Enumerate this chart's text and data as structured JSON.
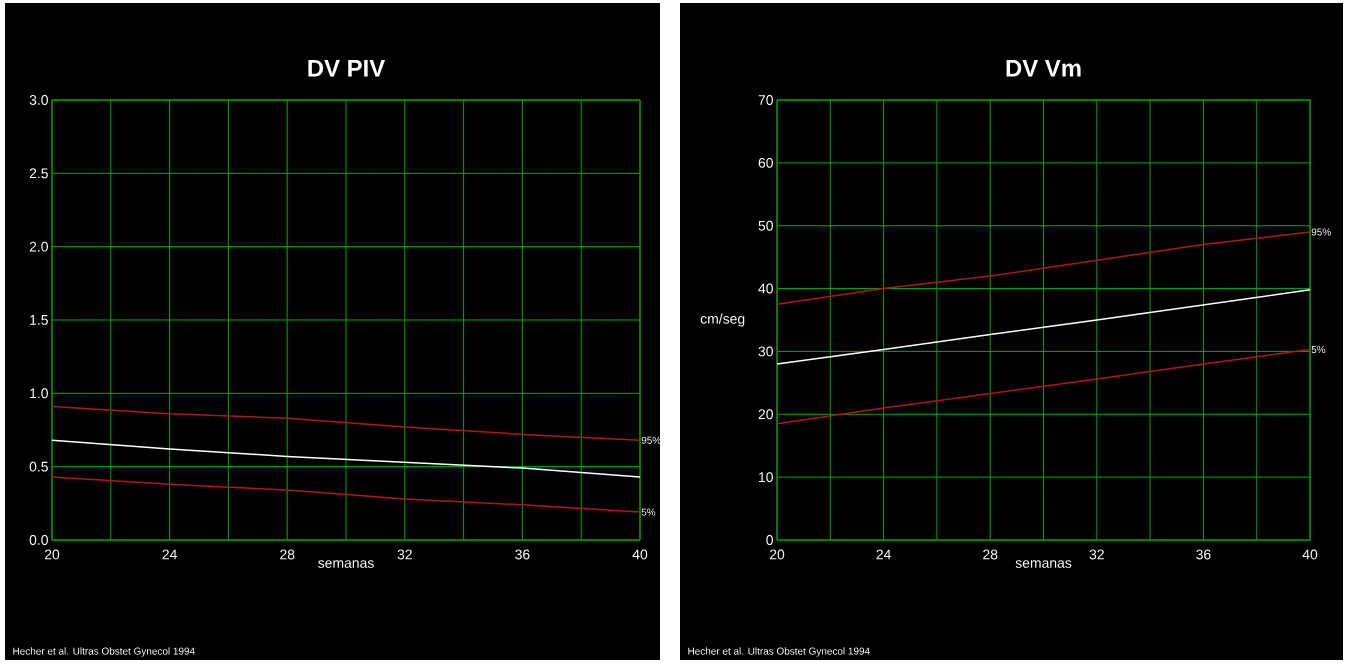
{
  "chart_data": [
    {
      "type": "line",
      "title": "DV PIV",
      "xlabel": "semanas",
      "x": [
        20,
        24,
        28,
        32,
        36,
        40
      ],
      "series": [
        {
          "name": "95%",
          "color": "#b01818",
          "values": [
            0.91,
            0.86,
            0.83,
            0.77,
            0.72,
            0.68
          ]
        },
        {
          "color": "#ffffff",
          "values": [
            0.68,
            0.62,
            0.57,
            0.53,
            0.49,
            0.43
          ]
        },
        {
          "name": "5%",
          "color": "#b01818",
          "values": [
            0.43,
            0.38,
            0.34,
            0.28,
            0.24,
            0.19
          ]
        }
      ],
      "xlim": [
        20,
        40
      ],
      "ylim": [
        0,
        3
      ],
      "xticks": [
        20,
        {
          "value": 22,
          "label": null
        },
        24,
        {
          "value": 26,
          "label": null
        },
        28,
        {
          "value": 30,
          "label": null
        },
        32,
        {
          "value": 34,
          "label": null
        },
        36,
        {
          "value": 38,
          "label": null
        },
        40
      ],
      "yticks": [
        {
          "value": 0,
          "label": "0.0"
        },
        0.5,
        {
          "value": 1,
          "label": "1.0"
        },
        1.5,
        {
          "value": 2,
          "label": "2.0"
        },
        2.5,
        {
          "value": 3,
          "label": "3.0"
        }
      ],
      "grid": true,
      "marker": "none",
      "line_style": "solid",
      "annotations": [
        "Hecher et al. Ultras Obstet Gynecol 1994"
      ]
    },
    {
      "type": "line",
      "title": "DV Vm",
      "xlabel": "semanas",
      "ylabel": "cm/seg",
      "x": [
        20,
        24,
        28,
        32,
        36,
        40
      ],
      "series": [
        {
          "name": "95%",
          "color": "#b01818",
          "values": [
            37.5,
            40,
            42,
            44.5,
            47,
            49
          ]
        },
        {
          "color": "#ffffff",
          "values": [
            28,
            30.3,
            32.7,
            35,
            37.4,
            39.8
          ]
        },
        {
          "name": "5%",
          "color": "#b01818",
          "values": [
            18.5,
            21,
            23.3,
            25.6,
            28,
            30.3
          ]
        }
      ],
      "xlim": [
        20,
        40
      ],
      "ylim": [
        0,
        70
      ],
      "xticks": [
        20,
        {
          "value": 22,
          "label": null
        },
        24,
        {
          "value": 26,
          "label": null
        },
        28,
        {
          "value": 30,
          "label": null
        },
        32,
        {
          "value": 34,
          "label": null
        },
        36,
        {
          "value": 38,
          "label": null
        },
        40
      ],
      "yticks": [
        0,
        10,
        20,
        30,
        40,
        50,
        60,
        70
      ],
      "grid": true,
      "marker": "none",
      "line_style": "solid",
      "annotations": [
        "Hecher et al. Ultras Obstet Gynecol 1994"
      ]
    }
  ]
}
